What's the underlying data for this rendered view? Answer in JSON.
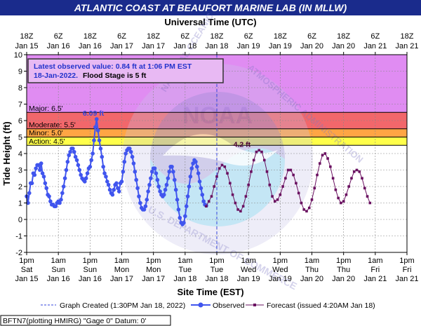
{
  "header": {
    "title": "ATLANTIC COAST AT BEAUFORT MARINE LAB (IN MLLW)"
  },
  "chart_data": {
    "type": "line",
    "title": "ATLANTIC COAST AT BEAUFORT MARINE LAB (IN MLLW)",
    "top_axis_title": "Universal Time (UTC)",
    "xlabel": "Site Time (EST)",
    "ylabel": "Tide Height (ft)",
    "ylim": [
      -2,
      10
    ],
    "yticks": [
      "-2",
      "-1",
      "0",
      "1",
      "2",
      "3",
      "4",
      "5",
      "6",
      "7",
      "8",
      "9",
      "10"
    ],
    "xlim_hours": [
      0,
      144
    ],
    "top_ticks": [
      {
        "t": 0,
        "l1": "18Z",
        "l2": "Jan 15"
      },
      {
        "t": 12,
        "l1": "6Z",
        "l2": "Jan 16"
      },
      {
        "t": 24,
        "l1": "18Z",
        "l2": "Jan 16"
      },
      {
        "t": 36,
        "l1": "6Z",
        "l2": "Jan 17"
      },
      {
        "t": 48,
        "l1": "18Z",
        "l2": "Jan 17"
      },
      {
        "t": 60,
        "l1": "6Z",
        "l2": "Jan 18"
      },
      {
        "t": 72,
        "l1": "18Z",
        "l2": "Jan 18"
      },
      {
        "t": 84,
        "l1": "6Z",
        "l2": "Jan 19"
      },
      {
        "t": 96,
        "l1": "18Z",
        "l2": "Jan 19"
      },
      {
        "t": 108,
        "l1": "6Z",
        "l2": "Jan 20"
      },
      {
        "t": 120,
        "l1": "18Z",
        "l2": "Jan 20"
      },
      {
        "t": 132,
        "l1": "6Z",
        "l2": "Jan 21"
      },
      {
        "t": 144,
        "l1": "18Z",
        "l2": "Jan 21"
      }
    ],
    "bottom_ticks": [
      {
        "t": 0,
        "l1": "1pm",
        "l2": "Sat",
        "l3": "Jan 15"
      },
      {
        "t": 12,
        "l1": "1am",
        "l2": "Sun",
        "l3": "Jan 16"
      },
      {
        "t": 24,
        "l1": "1pm",
        "l2": "Sun",
        "l3": "Jan 16"
      },
      {
        "t": 36,
        "l1": "1am",
        "l2": "Mon",
        "l3": "Jan 17"
      },
      {
        "t": 48,
        "l1": "1pm",
        "l2": "Mon",
        "l3": "Jan 17"
      },
      {
        "t": 60,
        "l1": "1am",
        "l2": "Tue",
        "l3": "Jan 18"
      },
      {
        "t": 72,
        "l1": "1pm",
        "l2": "Tue",
        "l3": "Jan 18"
      },
      {
        "t": 84,
        "l1": "1am",
        "l2": "Wed",
        "l3": "Jan 19"
      },
      {
        "t": 96,
        "l1": "1pm",
        "l2": "Wed",
        "l3": "Jan 19"
      },
      {
        "t": 108,
        "l1": "1am",
        "l2": "Thu",
        "l3": "Jan 20"
      },
      {
        "t": 120,
        "l1": "1pm",
        "l2": "Thu",
        "l3": "Jan 20"
      },
      {
        "t": 132,
        "l1": "1am",
        "l2": "Fri",
        "l3": "Jan 21"
      },
      {
        "t": 144,
        "l1": "1pm",
        "l2": "Fri",
        "l3": "Jan 21"
      }
    ],
    "bands": [
      {
        "label": "Major: 6.5'",
        "from": 6.5,
        "to": 10,
        "color": "#e08cf2"
      },
      {
        "label": "Moderate: 5.5'",
        "from": 5.5,
        "to": 6.5,
        "color": "#f2676b"
      },
      {
        "label": "Minor: 5.0'",
        "from": 5.0,
        "to": 5.5,
        "color": "#ffa544"
      },
      {
        "label": "Action: 4.5'",
        "from": 4.5,
        "to": 5.0,
        "color": "#ffff4a"
      }
    ],
    "info_box": {
      "line1": "Latest observed value: 0.84 ft at 1:06 PM EST",
      "line2_date": "18-Jan-2022.",
      "line2_flood": "Flood Stage is 5 ft"
    },
    "annotations": [
      {
        "text": "6.09 ft",
        "t": 26,
        "y": 6.09,
        "color": "#3344dd"
      },
      {
        "text": "4.2 ft",
        "t": 82,
        "y": 4.2,
        "color": "#4a0033"
      }
    ],
    "graph_created_t": 72,
    "series": [
      {
        "name": "Observed",
        "color": "#4055ee",
        "points": [
          [
            0.0,
            1.4
          ],
          [
            0.5,
            1.0
          ],
          [
            1.0,
            1.6
          ],
          [
            1.5,
            2.2
          ],
          [
            2.0,
            2.2
          ],
          [
            2.5,
            2.8
          ],
          [
            3.0,
            2.7
          ],
          [
            3.5,
            3.1
          ],
          [
            4.0,
            3.3
          ],
          [
            4.5,
            3.3
          ],
          [
            5.0,
            3.0
          ],
          [
            5.5,
            3.4
          ],
          [
            6.0,
            2.8
          ],
          [
            6.5,
            2.6
          ],
          [
            7.0,
            2.2
          ],
          [
            7.5,
            1.9
          ],
          [
            8.0,
            1.5
          ],
          [
            8.5,
            1.4
          ],
          [
            9.0,
            1.1
          ],
          [
            9.5,
            0.9
          ],
          [
            10.0,
            0.9
          ],
          [
            10.5,
            0.8
          ],
          [
            11.0,
            0.8
          ],
          [
            11.5,
            1.0
          ],
          [
            12.0,
            1.1
          ],
          [
            12.5,
            1.0
          ],
          [
            13.0,
            1.2
          ],
          [
            13.5,
            1.6
          ],
          [
            14.0,
            2.0
          ],
          [
            14.5,
            2.5
          ],
          [
            15.0,
            3.0
          ],
          [
            15.5,
            3.5
          ],
          [
            16.0,
            3.9
          ],
          [
            16.5,
            4.1
          ],
          [
            17.0,
            4.3
          ],
          [
            17.5,
            4.3
          ],
          [
            18.0,
            4.1
          ],
          [
            18.5,
            3.8
          ],
          [
            19.0,
            3.6
          ],
          [
            19.5,
            3.3
          ],
          [
            20.0,
            3.0
          ],
          [
            20.5,
            2.7
          ],
          [
            21.0,
            2.5
          ],
          [
            21.5,
            2.4
          ],
          [
            22.0,
            2.3
          ],
          [
            22.5,
            2.5
          ],
          [
            23.0,
            2.8
          ],
          [
            23.5,
            3.1
          ],
          [
            24.0,
            3.2
          ],
          [
            24.5,
            3.6
          ],
          [
            25.0,
            4.0
          ],
          [
            25.5,
            4.8
          ],
          [
            26.0,
            5.6
          ],
          [
            26.5,
            6.09
          ],
          [
            27.0,
            5.4
          ],
          [
            27.5,
            4.8
          ],
          [
            28.0,
            4.3
          ],
          [
            28.5,
            3.8
          ],
          [
            29.0,
            3.2
          ],
          [
            29.5,
            2.8
          ],
          [
            30.0,
            2.6
          ],
          [
            30.5,
            2.3
          ],
          [
            31.0,
            2.1
          ],
          [
            31.5,
            1.8
          ],
          [
            32.0,
            1.6
          ],
          [
            32.5,
            1.5
          ],
          [
            33.0,
            1.8
          ],
          [
            33.5,
            2.1
          ],
          [
            34.0,
            2.2
          ],
          [
            34.5,
            1.9
          ],
          [
            35.0,
            1.7
          ],
          [
            35.5,
            2.2
          ],
          [
            36.0,
            2.3
          ],
          [
            36.5,
            2.9
          ],
          [
            37.0,
            3.5
          ],
          [
            37.5,
            4.0
          ],
          [
            38.0,
            4.2
          ],
          [
            38.5,
            4.3
          ],
          [
            39.0,
            4.3
          ],
          [
            39.5,
            4.1
          ],
          [
            40.0,
            3.8
          ],
          [
            40.5,
            3.4
          ],
          [
            41.0,
            2.9
          ],
          [
            41.5,
            2.4
          ],
          [
            42.0,
            1.9
          ],
          [
            42.5,
            1.4
          ],
          [
            43.0,
            1.0
          ],
          [
            43.5,
            0.7
          ],
          [
            44.0,
            0.6
          ],
          [
            44.5,
            0.6
          ],
          [
            45.0,
            0.8
          ],
          [
            45.5,
            1.2
          ],
          [
            46.0,
            1.7
          ],
          [
            46.5,
            2.1
          ],
          [
            47.0,
            2.5
          ],
          [
            47.5,
            2.9
          ],
          [
            48.0,
            3.1
          ],
          [
            48.5,
            3.1
          ],
          [
            49.0,
            2.8
          ],
          [
            49.5,
            2.4
          ],
          [
            50.0,
            2.0
          ],
          [
            50.5,
            1.7
          ],
          [
            51.0,
            1.5
          ],
          [
            51.5,
            1.4
          ],
          [
            52.0,
            1.5
          ],
          [
            52.5,
            1.8
          ],
          [
            53.0,
            2.1
          ],
          [
            53.5,
            2.5
          ],
          [
            54.0,
            2.9
          ],
          [
            54.5,
            3.2
          ],
          [
            55.0,
            3.2
          ],
          [
            55.5,
            2.9
          ],
          [
            56.0,
            2.4
          ],
          [
            56.5,
            1.8
          ],
          [
            57.0,
            1.2
          ],
          [
            57.5,
            0.6
          ],
          [
            58.0,
            0.1
          ],
          [
            58.5,
            -0.2
          ],
          [
            59.0,
            -0.3
          ],
          [
            59.5,
            -0.2
          ],
          [
            60.0,
            0.2
          ],
          [
            60.5,
            0.8
          ],
          [
            61.0,
            1.4
          ],
          [
            61.5,
            2.0
          ],
          [
            62.0,
            2.6
          ],
          [
            62.5,
            3.1
          ],
          [
            63.0,
            3.4
          ],
          [
            63.5,
            3.6
          ],
          [
            64.0,
            3.5
          ],
          [
            64.5,
            3.2
          ],
          [
            65.0,
            2.8
          ],
          [
            65.5,
            2.3
          ],
          [
            66.0,
            1.9
          ],
          [
            66.5,
            1.5
          ],
          [
            67.0,
            1.1
          ],
          [
            67.5,
            0.9
          ],
          [
            68.0,
            0.84
          ]
        ]
      },
      {
        "name": "Forecast (issued 4:20AM Jan 18)",
        "color": "#6a1060",
        "points": [
          [
            68,
            0.8
          ],
          [
            69,
            1.1
          ],
          [
            70,
            1.4
          ],
          [
            71,
            2.0
          ],
          [
            72,
            2.6
          ],
          [
            73,
            3.1
          ],
          [
            74,
            3.3
          ],
          [
            75,
            3.2
          ],
          [
            76,
            2.8
          ],
          [
            77,
            2.2
          ],
          [
            78,
            1.5
          ],
          [
            79,
            1.0
          ],
          [
            80,
            0.6
          ],
          [
            81,
            0.5
          ],
          [
            82,
            0.8
          ],
          [
            83,
            1.4
          ],
          [
            84,
            2.1
          ],
          [
            85,
            2.9
          ],
          [
            86,
            3.6
          ],
          [
            87,
            4.1
          ],
          [
            88,
            4.2
          ],
          [
            89,
            4.1
          ],
          [
            90,
            3.6
          ],
          [
            91,
            2.9
          ],
          [
            92,
            2.1
          ],
          [
            93,
            1.4
          ],
          [
            94,
            1.1
          ],
          [
            95,
            1.2
          ],
          [
            96,
            1.5
          ],
          [
            97,
            2.0
          ],
          [
            98,
            2.5
          ],
          [
            99,
            3.0
          ],
          [
            100,
            3.0
          ],
          [
            101,
            2.7
          ],
          [
            102,
            2.2
          ],
          [
            103,
            1.6
          ],
          [
            104,
            1.0
          ],
          [
            105,
            0.6
          ],
          [
            106,
            0.5
          ],
          [
            107,
            0.7
          ],
          [
            108,
            1.2
          ],
          [
            109,
            1.9
          ],
          [
            110,
            2.7
          ],
          [
            111,
            3.4
          ],
          [
            112,
            3.9
          ],
          [
            113,
            4.0
          ],
          [
            114,
            3.7
          ],
          [
            115,
            3.2
          ],
          [
            116,
            2.5
          ],
          [
            117,
            1.8
          ],
          [
            118,
            1.3
          ],
          [
            119,
            1.0
          ],
          [
            120,
            1.1
          ],
          [
            121,
            1.5
          ],
          [
            122,
            2.0
          ],
          [
            123,
            2.5
          ],
          [
            124,
            2.9
          ],
          [
            125,
            3.0
          ],
          [
            126,
            2.9
          ],
          [
            127,
            2.5
          ],
          [
            128,
            1.9
          ],
          [
            129,
            1.4
          ],
          [
            130,
            1.0
          ]
        ]
      }
    ]
  },
  "legend": {
    "graph_created": "Graph Created (1:30PM Jan 18, 2022)",
    "observed": "Observed",
    "forecast": "Forecast (issued 4:20AM Jan 18)"
  },
  "footer": {
    "station": "BFTN7(plotting HMIRG) \"Gage 0\" Datum:  0'"
  }
}
